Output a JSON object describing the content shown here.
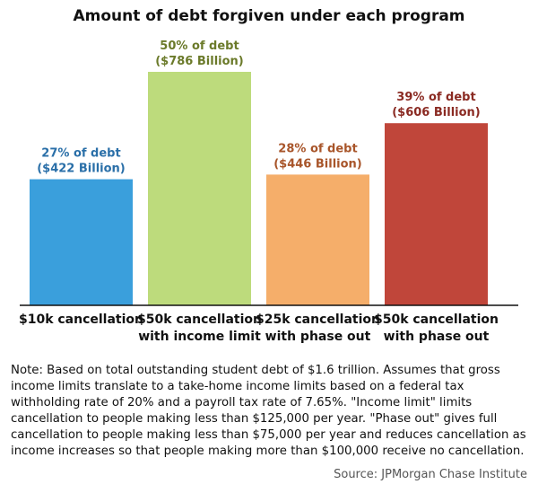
{
  "chart_data": {
    "type": "bar",
    "title": "Amount of debt forgiven under each program",
    "categories": [
      [
        "$10k cancellation"
      ],
      [
        "$50k cancellation",
        "with income limit"
      ],
      [
        "$25k cancellation",
        "with phase out"
      ],
      [
        "$50k cancellation",
        "with phase out"
      ]
    ],
    "values": [
      27,
      50,
      28,
      39
    ],
    "data_labels": [
      [
        "27% of debt",
        "($422 Billion)"
      ],
      [
        "50% of debt",
        "($786 Billion)"
      ],
      [
        "28% of debt",
        "($446 Billion)"
      ],
      [
        "39% of debt",
        "($606 Billion)"
      ]
    ],
    "colors": [
      "#3a9fdc",
      "#bddb7c",
      "#f5ae6a",
      "#c0463a"
    ],
    "label_colors": [
      "#2a6fa8",
      "#6b7a2a",
      "#a8552a",
      "#8a2a22"
    ],
    "unit": "% of debt",
    "grid": false,
    "ylim": [
      0,
      50
    ]
  },
  "note": "Note: Based on total outstanding student debt of $1.6 trillion. Assumes that gross income limits translate to a take-home income limits based on a federal tax withholding rate of 20% and a payroll tax rate of 7.65%. \"Income limit\" limits cancellation to people making less than $125,000 per year. \"Phase out\" gives full cancellation to people making less than $75,000 per year and reduces cancellation as income increases so that people making more than $100,000 receive no cancellation.",
  "source": "Source: JPMorgan Chase Institute"
}
